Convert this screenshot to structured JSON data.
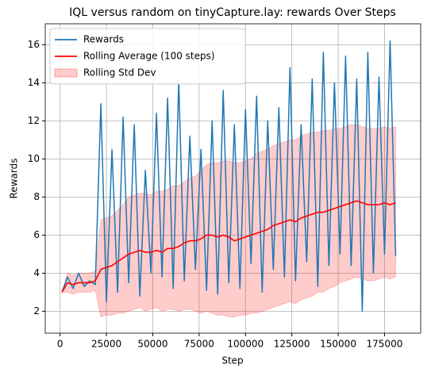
{
  "chart_data": {
    "type": "line",
    "title": "IQL versus random on tinyCapture.lay: rewards Over Steps",
    "xlabel": "Step",
    "ylabel": "Rewards",
    "x": [
      1000,
      4000,
      7000,
      10000,
      13000,
      16000,
      19000,
      22000,
      25000,
      28000,
      31000,
      34000,
      37000,
      40000,
      43000,
      46000,
      49000,
      52000,
      55000,
      58000,
      61000,
      64000,
      67000,
      70000,
      73000,
      76000,
      79000,
      82000,
      85000,
      88000,
      91000,
      94000,
      97000,
      100000,
      103000,
      106000,
      109000,
      112000,
      115000,
      118000,
      121000,
      124000,
      127000,
      130000,
      133000,
      136000,
      139000,
      142000,
      145000,
      148000,
      151000,
      154000,
      157000,
      160000,
      163000,
      166000,
      169000,
      172000,
      175000,
      178000,
      181000
    ],
    "series": [
      {
        "name": "Rewards",
        "color": "#1f77b4",
        "values": [
          3.0,
          3.8,
          3.2,
          4.0,
          3.3,
          3.6,
          3.4,
          12.9,
          2.5,
          10.5,
          3.0,
          12.2,
          3.5,
          11.8,
          2.8,
          9.4,
          4.0,
          12.4,
          3.8,
          13.2,
          3.2,
          14.1,
          3.6,
          11.2,
          4.2,
          10.5,
          3.1,
          12.0,
          2.9,
          13.6,
          3.5,
          11.8,
          3.2,
          12.6,
          4.5,
          13.3,
          3.0,
          12.0,
          4.2,
          12.7,
          3.8,
          14.8,
          3.6,
          11.8,
          4.6,
          14.2,
          3.3,
          15.6,
          4.4,
          14.0,
          5.0,
          15.4,
          4.4,
          14.2,
          2.0,
          15.6,
          4.0,
          14.3,
          5.0,
          16.2,
          4.9
        ]
      },
      {
        "name": "Rolling Average (100 steps)",
        "color": "#ff0000",
        "values": [
          3.0,
          3.5,
          3.4,
          3.5,
          3.5,
          3.5,
          3.6,
          4.2,
          4.3,
          4.4,
          4.6,
          4.8,
          5.0,
          5.1,
          5.2,
          5.1,
          5.1,
          5.2,
          5.1,
          5.3,
          5.3,
          5.4,
          5.6,
          5.7,
          5.7,
          5.8,
          6.0,
          6.0,
          5.9,
          6.0,
          5.9,
          5.7,
          5.8,
          5.9,
          6.0,
          6.1,
          6.2,
          6.3,
          6.5,
          6.6,
          6.7,
          6.8,
          6.7,
          6.9,
          7.0,
          7.1,
          7.2,
          7.2,
          7.3,
          7.4,
          7.5,
          7.6,
          7.7,
          7.8,
          7.7,
          7.6,
          7.6,
          7.6,
          7.7,
          7.6,
          7.7
        ]
      },
      {
        "name": "Rolling Std Dev",
        "color": "#ff9999",
        "lower": [
          3.0,
          3.0,
          2.9,
          3.0,
          3.0,
          3.0,
          3.1,
          1.7,
          1.8,
          1.8,
          1.9,
          1.9,
          2.0,
          2.1,
          2.2,
          2.0,
          2.1,
          2.2,
          2.0,
          2.1,
          2.1,
          2.0,
          2.1,
          2.1,
          2.0,
          1.9,
          2.0,
          1.9,
          1.8,
          1.8,
          1.7,
          1.7,
          1.8,
          1.8,
          1.9,
          1.9,
          2.0,
          2.1,
          2.2,
          2.3,
          2.4,
          2.5,
          2.4,
          2.6,
          2.7,
          2.8,
          3.0,
          3.0,
          3.2,
          3.3,
          3.5,
          3.6,
          3.7,
          3.8,
          3.7,
          3.6,
          3.6,
          3.7,
          3.8,
          3.7,
          3.8
        ],
        "upper": [
          3.0,
          4.0,
          3.9,
          4.0,
          4.0,
          4.0,
          4.1,
          6.8,
          6.9,
          7.0,
          7.3,
          7.6,
          8.0,
          8.1,
          8.2,
          8.2,
          8.1,
          8.3,
          8.3,
          8.4,
          8.6,
          8.6,
          8.8,
          9.0,
          9.1,
          9.4,
          9.7,
          9.8,
          9.8,
          9.9,
          9.9,
          9.8,
          9.8,
          9.9,
          10.0,
          10.3,
          10.4,
          10.5,
          10.7,
          10.8,
          10.9,
          11.0,
          11.0,
          11.2,
          11.3,
          11.4,
          11.4,
          11.5,
          11.5,
          11.6,
          11.6,
          11.7,
          11.8,
          11.8,
          11.7,
          11.6,
          11.6,
          11.6,
          11.7,
          11.6,
          11.7
        ]
      }
    ],
    "xlim": [
      -8000,
      194500
    ],
    "ylim": [
      0.85,
      17.1
    ],
    "xticks": [
      0,
      25000,
      50000,
      75000,
      100000,
      125000,
      150000,
      175000
    ],
    "yticks": [
      2,
      4,
      6,
      8,
      10,
      12,
      14,
      16
    ],
    "grid": true,
    "legend": "upper left"
  }
}
